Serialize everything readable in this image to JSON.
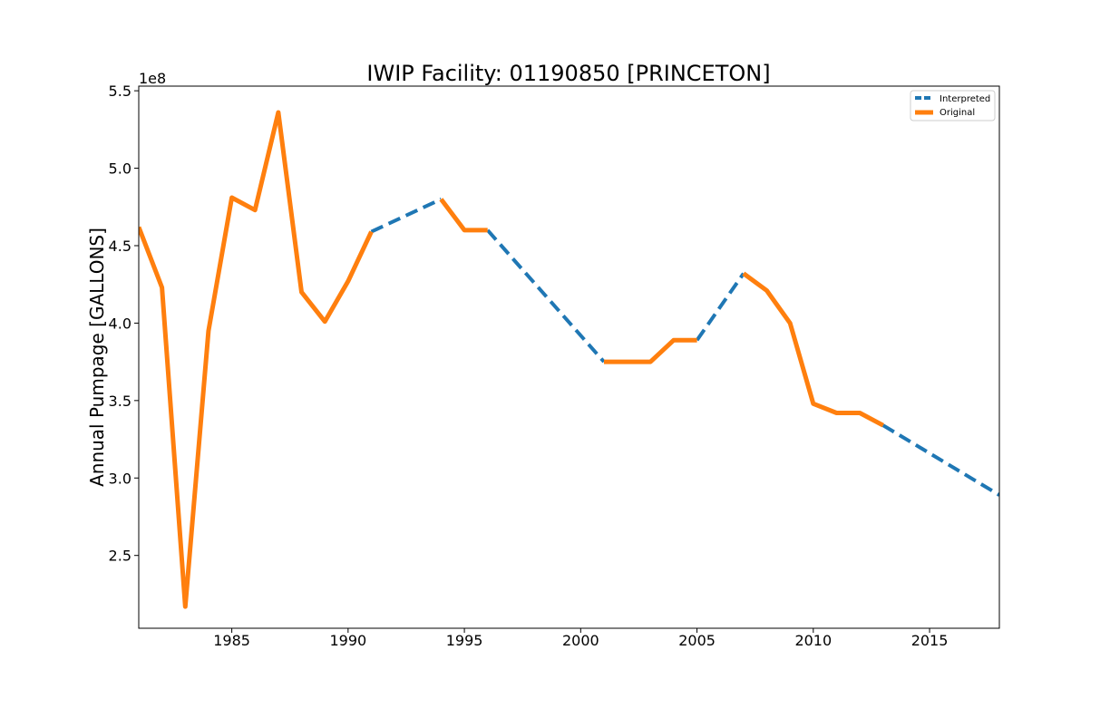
{
  "chart_data": {
    "type": "line",
    "title": "IWIP Facility: 01190850 [PRINCETON]",
    "xlabel": "",
    "ylabel": "Annual Pumpage [GALLONS]",
    "y_offset_text": "1e8",
    "xlim": [
      1981,
      2018
    ],
    "ylim": [
      2.03,
      5.53
    ],
    "x_ticks": [
      1985,
      1990,
      1995,
      2000,
      2005,
      2010,
      2015
    ],
    "y_ticks": [
      2.5,
      3.0,
      3.5,
      4.0,
      4.5,
      5.0,
      5.5
    ],
    "x_tick_labels": [
      "1985",
      "1990",
      "1995",
      "2000",
      "2005",
      "2010",
      "2015"
    ],
    "y_tick_labels": [
      "2.5",
      "3.0",
      "3.5",
      "4.0",
      "4.5",
      "5.0",
      "5.5"
    ],
    "grid": false,
    "legend_position": "top-right",
    "series": [
      {
        "name": "Interpreted",
        "color": "#1f77b4",
        "style": "dashed",
        "segments": [
          {
            "x": [
              1991,
              1994
            ],
            "y": [
              4.59,
              4.8
            ]
          },
          {
            "x": [
              1996,
              2001
            ],
            "y": [
              4.6,
              3.75
            ]
          },
          {
            "x": [
              2005,
              2007
            ],
            "y": [
              3.89,
              4.32
            ]
          },
          {
            "x": [
              2013,
              2018
            ],
            "y": [
              3.34,
              2.89
            ]
          }
        ]
      },
      {
        "name": "Original",
        "color": "#ff7f0e",
        "style": "solid",
        "segments": [
          {
            "x": [
              1981,
              1982,
              1983,
              1984,
              1985,
              1986,
              1987,
              1988,
              1989,
              1990,
              1991
            ],
            "y": [
              4.62,
              4.23,
              2.17,
              3.95,
              4.81,
              4.73,
              5.36,
              4.2,
              4.01,
              4.27,
              4.59
            ]
          },
          {
            "x": [
              1994,
              1995,
              1996
            ],
            "y": [
              4.8,
              4.6,
              4.6
            ]
          },
          {
            "x": [
              2001,
              2002,
              2003,
              2004,
              2005
            ],
            "y": [
              3.75,
              3.75,
              3.75,
              3.89,
              3.89
            ]
          },
          {
            "x": [
              2007,
              2008,
              2009,
              2010,
              2011,
              2012,
              2013
            ],
            "y": [
              4.32,
              4.21,
              4.0,
              3.48,
              3.42,
              3.42,
              3.34
            ]
          }
        ]
      }
    ]
  }
}
